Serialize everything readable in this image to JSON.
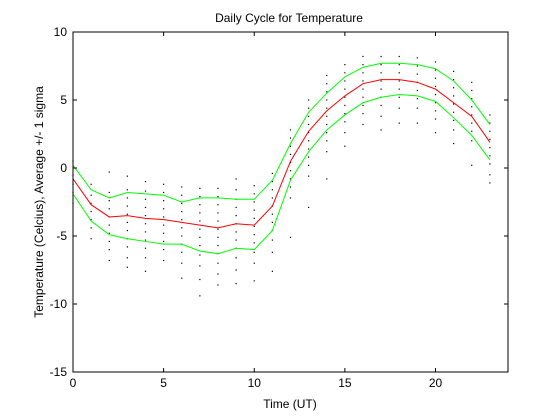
{
  "chart_data": {
    "type": "line",
    "title": "Daily Cycle for Temperature",
    "xlabel": "Time (UT)",
    "ylabel": "Temperature (Celcius), Average +/- 1 sigma",
    "xlim": [
      0,
      24
    ],
    "ylim": [
      -15,
      10
    ],
    "xticks": [
      0,
      5,
      10,
      15,
      20
    ],
    "yticks": [
      -15,
      -10,
      -5,
      0,
      5,
      10
    ],
    "grid": false,
    "x": [
      0,
      1,
      2,
      3,
      4,
      5,
      6,
      7,
      8,
      9,
      10,
      11,
      12,
      13,
      14,
      15,
      16,
      17,
      18,
      19,
      20,
      21,
      22,
      23
    ],
    "series": [
      {
        "role": "mean",
        "color": "#ff0000",
        "values": [
          -0.8,
          -2.7,
          -3.6,
          -3.5,
          -3.7,
          -3.8,
          -4.0,
          -4.2,
          -4.4,
          -4.1,
          -4.2,
          -2.8,
          0.5,
          2.7,
          4.2,
          5.3,
          6.2,
          6.5,
          6.5,
          6.3,
          5.8,
          4.8,
          3.8,
          1.9
        ]
      },
      {
        "role": "mean + 1 sigma",
        "color": "#00ff00",
        "values": [
          0.2,
          -1.6,
          -2.2,
          -1.8,
          -1.9,
          -2.0,
          -2.5,
          -2.2,
          -2.2,
          -2.3,
          -2.3,
          -0.9,
          1.8,
          4.1,
          5.5,
          6.7,
          7.4,
          7.7,
          7.7,
          7.6,
          7.3,
          6.4,
          5.0,
          3.2
        ]
      },
      {
        "role": "mean - 1 sigma",
        "color": "#00ff00",
        "values": [
          -1.9,
          -3.9,
          -4.9,
          -5.2,
          -5.4,
          -5.6,
          -5.6,
          -6.1,
          -6.3,
          -5.9,
          -6.0,
          -4.6,
          -0.9,
          1.2,
          2.8,
          3.9,
          4.8,
          5.2,
          5.4,
          5.3,
          4.9,
          3.7,
          2.4,
          0.6
        ]
      }
    ],
    "samples": [
      {
        "x": 0,
        "y": [
          0.5,
          -0.5,
          -1.2,
          -1.8,
          -2.6
        ]
      },
      {
        "x": 1,
        "y": [
          -1.2,
          -2.0,
          -2.6,
          -3.2,
          -3.8,
          -4.4,
          -5.2
        ]
      },
      {
        "x": 2,
        "y": [
          -0.3,
          -1.8,
          -2.4,
          -3.0,
          -3.6,
          -4.2,
          -4.8,
          -5.4,
          -6.0,
          -6.8
        ]
      },
      {
        "x": 3,
        "y": [
          -0.6,
          -1.6,
          -2.2,
          -2.8,
          -3.4,
          -4.0,
          -4.6,
          -5.2,
          -5.8,
          -6.6,
          -7.3
        ]
      },
      {
        "x": 4,
        "y": [
          -1.0,
          -1.7,
          -2.3,
          -2.9,
          -3.5,
          -4.1,
          -4.7,
          -5.3,
          -5.9,
          -6.6,
          -7.6
        ]
      },
      {
        "x": 5,
        "y": [
          -1.2,
          -1.8,
          -2.4,
          -3.0,
          -3.6,
          -4.2,
          -4.8,
          -5.4,
          -6.0,
          -6.8
        ]
      },
      {
        "x": 6,
        "y": [
          -1.4,
          -2.0,
          -2.6,
          -3.2,
          -3.8,
          -4.4,
          -5.0,
          -5.6,
          -6.2,
          -7.0,
          -8.1
        ]
      },
      {
        "x": 7,
        "y": [
          -1.5,
          -2.1,
          -2.7,
          -3.3,
          -3.9,
          -4.5,
          -5.1,
          -5.7,
          -6.4,
          -7.2,
          -8.2,
          -9.4
        ]
      },
      {
        "x": 8,
        "y": [
          -1.5,
          -2.1,
          -2.7,
          -3.3,
          -3.9,
          -4.5,
          -5.1,
          -5.7,
          -6.3,
          -7.0,
          -7.8,
          -8.6
        ]
      },
      {
        "x": 9,
        "y": [
          -0.8,
          -1.6,
          -2.3,
          -2.9,
          -3.5,
          -4.1,
          -4.7,
          -5.3,
          -5.9,
          -6.6,
          -7.5,
          -8.5
        ]
      },
      {
        "x": 10,
        "y": [
          -1.3,
          -1.9,
          -2.5,
          -3.1,
          -3.7,
          -4.3,
          -4.9,
          -5.5,
          -6.2,
          -7.0,
          -8.3
        ]
      },
      {
        "x": 11,
        "y": [
          -0.4,
          -1.0,
          -1.6,
          -2.2,
          -2.8,
          -3.4,
          -4.0,
          -4.6,
          -5.3,
          -6.2,
          -7.6
        ]
      },
      {
        "x": 12,
        "y": [
          2.8,
          2.2,
          1.6,
          1.0,
          0.4,
          -0.2,
          -0.8,
          -1.4,
          -2.2,
          -5.1
        ]
      },
      {
        "x": 13,
        "y": [
          5.0,
          4.4,
          3.8,
          3.2,
          2.6,
          2.0,
          1.4,
          0.8,
          0.2,
          -0.6,
          -2.9
        ]
      },
      {
        "x": 14,
        "y": [
          6.8,
          6.2,
          5.6,
          5.0,
          4.4,
          3.8,
          3.2,
          2.6,
          2.0,
          1.2,
          -0.8
        ]
      },
      {
        "x": 15,
        "y": [
          7.6,
          7.0,
          6.4,
          5.8,
          5.2,
          4.6,
          4.0,
          3.4,
          2.6,
          1.6
        ]
      },
      {
        "x": 16,
        "y": [
          8.2,
          7.6,
          7.0,
          6.4,
          5.8,
          5.2,
          4.6,
          4.0,
          3.2
        ]
      },
      {
        "x": 17,
        "y": [
          8.2,
          7.6,
          7.0,
          6.4,
          5.8,
          5.2,
          4.6,
          3.8,
          2.8
        ]
      },
      {
        "x": 18,
        "y": [
          8.2,
          7.6,
          7.0,
          6.4,
          5.8,
          5.2,
          4.4,
          3.3
        ]
      },
      {
        "x": 19,
        "y": [
          8.1,
          7.5,
          6.9,
          6.3,
          5.7,
          5.1,
          4.4,
          3.3
        ]
      },
      {
        "x": 20,
        "y": [
          7.8,
          7.2,
          6.6,
          6.0,
          5.4,
          4.8,
          4.2,
          3.6,
          2.6
        ]
      },
      {
        "x": 21,
        "y": [
          7.1,
          6.5,
          5.9,
          5.3,
          4.7,
          4.1,
          3.5,
          2.8,
          1.8
        ]
      },
      {
        "x": 22,
        "y": [
          6.3,
          5.7,
          5.1,
          4.5,
          3.9,
          3.3,
          2.7,
          2.0,
          0.2
        ]
      },
      {
        "x": 23,
        "y": [
          3.9,
          3.3,
          2.7,
          2.1,
          1.5,
          0.9,
          0.3,
          -0.5,
          -1.1
        ]
      }
    ]
  }
}
